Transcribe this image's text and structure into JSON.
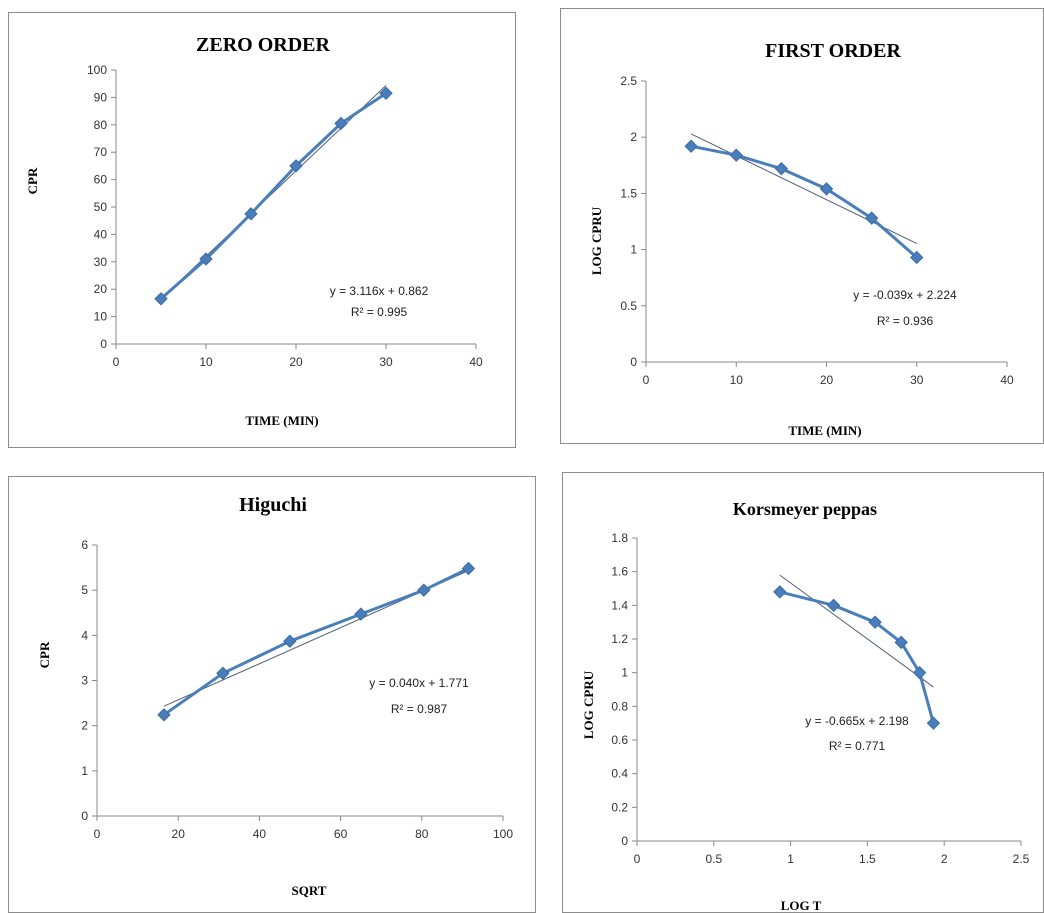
{
  "chart_data": [
    {
      "type": "line",
      "title": "ZERO ORDER",
      "xlabel": "TIME (MIN)",
      "ylabel": "CPR",
      "xlim": [
        0,
        40
      ],
      "ylim": [
        0,
        100
      ],
      "xticks": [
        "0",
        "10",
        "20",
        "30",
        "40"
      ],
      "yticks": [
        "0",
        "10",
        "20",
        "30",
        "40",
        "50",
        "60",
        "70",
        "80",
        "90",
        "100"
      ],
      "grid": false,
      "series": [
        {
          "x": [
            5,
            10,
            15,
            20,
            25,
            30
          ],
          "values": [
            16.5,
            31,
            47.5,
            65,
            80.5,
            91.5
          ]
        }
      ],
      "trendline": {
        "slope": 3.116,
        "intercept": 0.862
      },
      "equation": "y = 3.116x + 0.862",
      "r2": "R² = 0.995",
      "colors": {
        "series": "#4a7ebb",
        "trendline": "#4f5f73"
      }
    },
    {
      "type": "line",
      "title": "FIRST ORDER",
      "xlabel": "TIME (MIN)",
      "ylabel": "LOG CPRU",
      "xlim": [
        0,
        40
      ],
      "ylim": [
        0,
        2.5
      ],
      "xticks": [
        "0",
        "10",
        "20",
        "30",
        "40"
      ],
      "yticks": [
        "0",
        "0.5",
        "1",
        "1.5",
        "2",
        "2.5"
      ],
      "grid": false,
      "series": [
        {
          "x": [
            5,
            10,
            15,
            20,
            25,
            30
          ],
          "values": [
            1.92,
            1.84,
            1.72,
            1.54,
            1.28,
            0.93
          ]
        }
      ],
      "trendline": {
        "slope": -0.039,
        "intercept": 2.224
      },
      "equation": "y = -0.039x + 2.224",
      "r2": "R² = 0.936",
      "colors": {
        "series": "#4a7ebb",
        "trendline": "#4f5f73"
      }
    },
    {
      "type": "line",
      "title": "Higuchi",
      "xlabel": "SQRT",
      "ylabel": "CPR",
      "xlim": [
        0,
        100
      ],
      "ylim": [
        0,
        6
      ],
      "xticks": [
        "0",
        "20",
        "40",
        "60",
        "80",
        "100"
      ],
      "yticks": [
        "0",
        "1",
        "2",
        "3",
        "4",
        "5",
        "6"
      ],
      "grid": false,
      "series": [
        {
          "x": [
            16.5,
            31,
            47.5,
            65,
            80.5,
            91.5
          ],
          "values": [
            2.24,
            3.16,
            3.87,
            4.47,
            5.0,
            5.48
          ]
        }
      ],
      "trendline": {
        "slope": 0.04,
        "intercept": 1.771
      },
      "equation": "y = 0.040x + 1.771",
      "r2": "R² = 0.987",
      "colors": {
        "series": "#4a7ebb",
        "trendline": "#4f5f73"
      }
    },
    {
      "type": "line",
      "title": "Korsmeyer peppas",
      "xlabel": "LOG T",
      "ylabel": "LOG CPRU",
      "xlim": [
        0,
        2.5
      ],
      "ylim": [
        0,
        1.8
      ],
      "xticks": [
        "0",
        "0.5",
        "1",
        "1.5",
        "2",
        "2.5"
      ],
      "yticks": [
        "0",
        "0.2",
        "0.4",
        "0.6",
        "0.8",
        "1",
        "1.2",
        "1.4",
        "1.6",
        "1.8"
      ],
      "grid": false,
      "series": [
        {
          "x": [
            0.93,
            1.28,
            1.55,
            1.72,
            1.84,
            1.93
          ],
          "values": [
            1.48,
            1.4,
            1.3,
            1.18,
            1.0,
            0.7
          ]
        }
      ],
      "trendline": {
        "slope": -0.665,
        "intercept": 2.198
      },
      "equation": "y = -0.665x + 2.198",
      "r2": "R² = 0.771",
      "colors": {
        "series": "#4a7ebb",
        "trendline": "#4f5f73"
      }
    }
  ]
}
